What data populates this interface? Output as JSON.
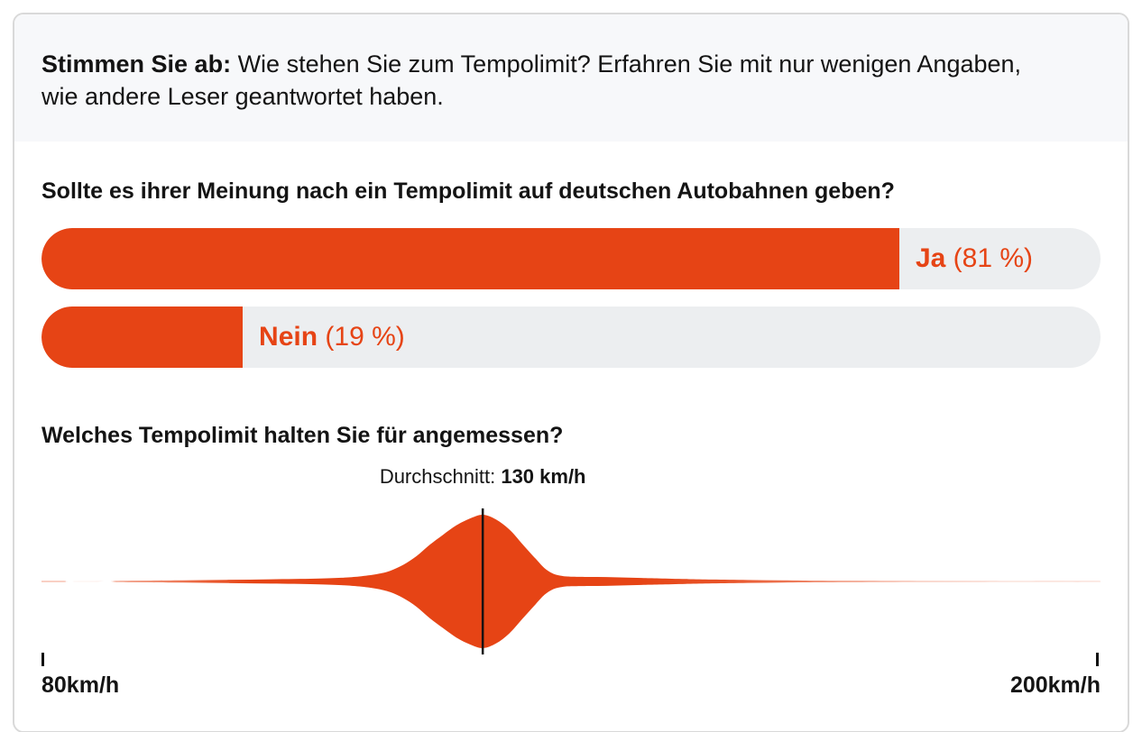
{
  "colors": {
    "accent": "#e64415",
    "track": "#eceef0",
    "header_bg": "#f7f8fa",
    "border": "#d9d9d9",
    "text": "#141414",
    "marker": "#111111"
  },
  "header": {
    "bold": "Stimmen Sie ab:",
    "text": " Wie stehen Sie zum Tempolimit? Erfahren Sie mit nur wenigen Angaben, wie andere Leser geantwortet haben."
  },
  "question1": {
    "title": "Sollte es ihrer Meinung nach ein Tempolimit auf deutschen Autobahnen geben?",
    "options": [
      {
        "label": "Ja",
        "pct": 81,
        "pct_label": "(81 %)"
      },
      {
        "label": "Nein",
        "pct": 19,
        "pct_label": "(19 %)"
      }
    ]
  },
  "question2": {
    "title": "Welches Tempolimit halten Sie für angemessen?",
    "average_label": "Durchschnitt:",
    "average_value": "130 km/h",
    "axis_min_label": "80km/h",
    "axis_max_label": "200km/h"
  },
  "chart_data": [
    {
      "type": "bar",
      "title": "Sollte es ihrer Meinung nach ein Tempolimit auf deutschen Autobahnen geben?",
      "orientation": "horizontal",
      "categories": [
        "Ja",
        "Nein"
      ],
      "values": [
        81,
        19
      ],
      "unit": "%",
      "xlim": [
        0,
        100
      ],
      "bar_color": "#e64415",
      "track_color": "#eceef0"
    },
    {
      "type": "area",
      "title": "Welches Tempolimit halten Sie für angemessen?",
      "subtitle": "Durchschnitt: 130 km/h",
      "shape": "violin-mirrored-density",
      "average_kmh": 130,
      "xlim": [
        80,
        200
      ],
      "axis_tick_labels": [
        "80km/h",
        "200km/h"
      ],
      "fill_color": "#e64415",
      "x_kmh": [
        80,
        82.5,
        83.2,
        87.5,
        88.5,
        91,
        96,
        101,
        106,
        111,
        114,
        116,
        118,
        119.5,
        121,
        122.5,
        124,
        125.5,
        127,
        128.5,
        130,
        131.5,
        133,
        134.5,
        136,
        137,
        138,
        139,
        140,
        142,
        144,
        146,
        148,
        150,
        153,
        156,
        160,
        164,
        168,
        173,
        180,
        190,
        200
      ],
      "density": [
        0.013,
        0.013,
        0.0,
        0.0,
        0.01,
        0.013,
        0.018,
        0.024,
        0.032,
        0.042,
        0.055,
        0.075,
        0.11,
        0.16,
        0.25,
        0.38,
        0.55,
        0.7,
        0.84,
        0.94,
        1.0,
        0.93,
        0.78,
        0.56,
        0.34,
        0.2,
        0.115,
        0.082,
        0.072,
        0.068,
        0.066,
        0.06,
        0.053,
        0.046,
        0.037,
        0.029,
        0.022,
        0.016,
        0.012,
        0.009,
        0.007,
        0.006,
        0.005
      ],
      "fade_stops": [
        [
          0,
          0.25
        ],
        [
          0.03,
          0.25
        ],
        [
          0.05,
          0.35
        ],
        [
          0.1,
          0.55
        ],
        [
          0.16,
          0.9
        ],
        [
          0.2,
          1
        ],
        [
          0.56,
          1
        ],
        [
          0.65,
          0.9
        ],
        [
          0.72,
          0.65
        ],
        [
          0.8,
          0.45
        ],
        [
          0.88,
          0.32
        ],
        [
          1,
          0.25
        ]
      ]
    }
  ]
}
